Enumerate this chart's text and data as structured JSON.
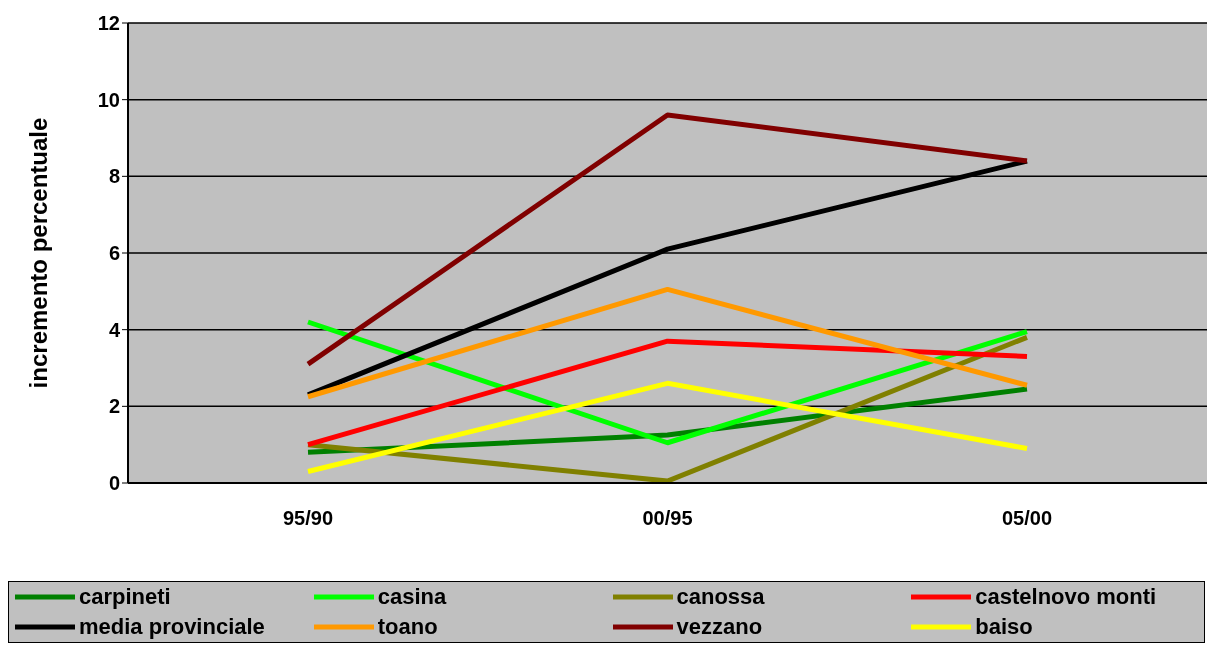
{
  "chart_data": {
    "type": "line",
    "ylabel": "incremento percentuale",
    "categories": [
      "95/90",
      "00/95",
      "05/00"
    ],
    "ylim": [
      0,
      12
    ],
    "yticks": [
      0,
      2,
      4,
      6,
      8,
      10,
      12
    ],
    "grid": "y",
    "legend": "bottom",
    "marker": "none",
    "line_style": "solid",
    "series": [
      {
        "name": "carpineti",
        "color": "#008000",
        "values": [
          0.8,
          1.25,
          2.45
        ]
      },
      {
        "name": "casina",
        "color": "#00ff00",
        "values": [
          4.2,
          1.05,
          3.95
        ]
      },
      {
        "name": "canossa",
        "color": "#808000",
        "values": [
          1.0,
          0.05,
          3.8
        ]
      },
      {
        "name": "castelnovo monti",
        "color": "#ff0000",
        "values": [
          1.0,
          3.7,
          3.3
        ]
      },
      {
        "name": "media provinciale",
        "color": "#000000",
        "values": [
          2.3,
          6.1,
          8.4
        ]
      },
      {
        "name": "toano",
        "color": "#ff9900",
        "values": [
          2.25,
          5.05,
          2.55
        ]
      },
      {
        "name": "vezzano",
        "color": "#800000",
        "values": [
          3.1,
          9.6,
          8.4
        ]
      },
      {
        "name": "baiso",
        "color": "#ffff00",
        "values": [
          0.3,
          2.6,
          0.9
        ]
      }
    ]
  }
}
